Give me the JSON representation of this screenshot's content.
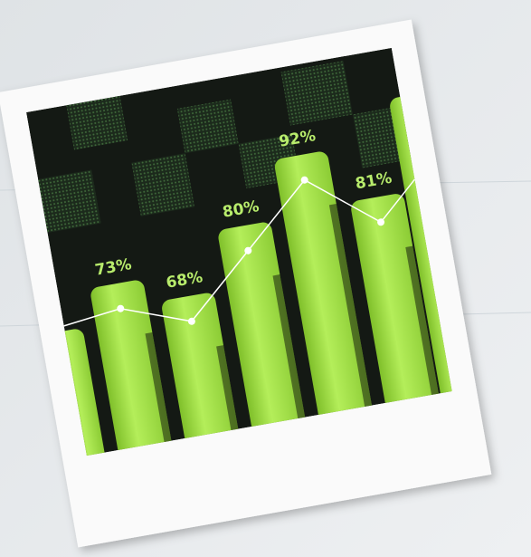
{
  "chart_data": {
    "type": "bar",
    "values": [
      73,
      68,
      80,
      92,
      81
    ],
    "value_labels": [
      "73%",
      "68%",
      "80%",
      "92%",
      "81%"
    ],
    "color": "#a6e24a",
    "line_color": "#ffffff"
  }
}
